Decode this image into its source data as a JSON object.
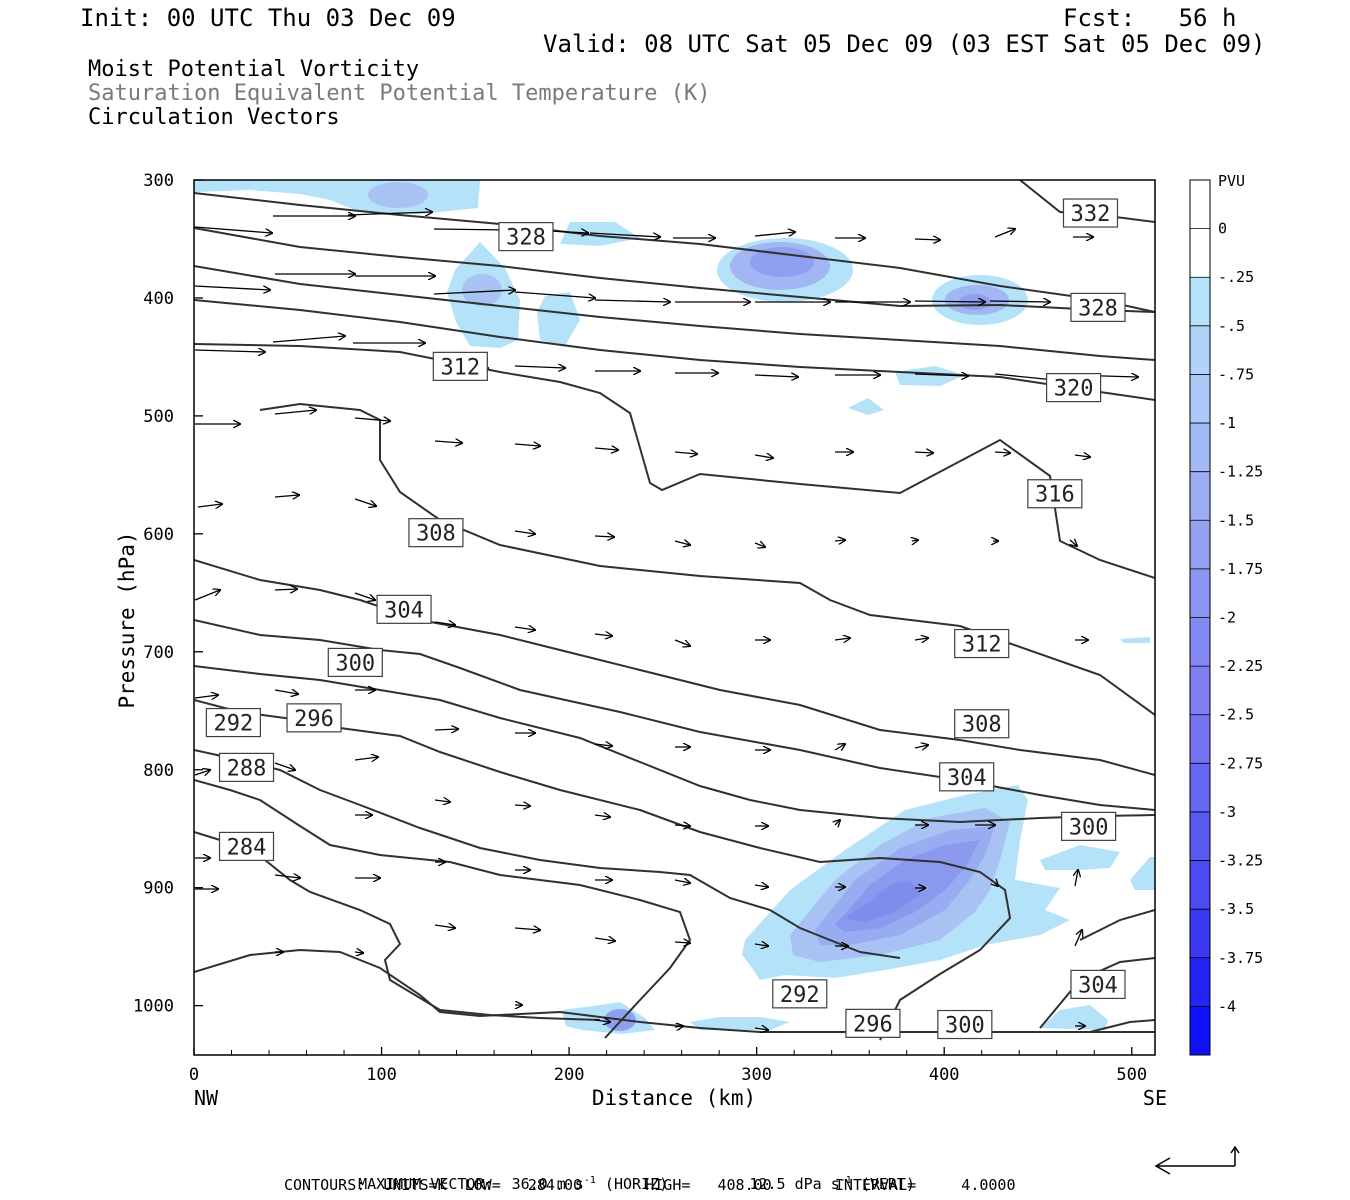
{
  "header": {
    "init": "Init: 00 UTC Thu 03 Dec 09",
    "fcst": "Fcst:   56 h",
    "valid": "Valid: 08 UTC Sat 05 Dec 09 (03 EST Sat 05 Dec 09)"
  },
  "titles": [
    "Moist Potential Vorticity",
    "Saturation Equivalent Potential Temperature (K)",
    "Circulation Vectors"
  ],
  "colors": {
    "contour": "#303030",
    "shade_light": "#b4e2f8",
    "shade_mid": "#8fa6f2",
    "shade_dark": "#7474ea"
  },
  "chart_data": {
    "type": "cross-section",
    "xlabel": "Distance (km)",
    "ylabel": "Pressure (hPa)",
    "x_ticks": [
      0,
      100,
      200,
      300,
      400,
      500
    ],
    "y_ticks": [
      300,
      400,
      500,
      600,
      700,
      800,
      900,
      1000
    ],
    "xlim": [
      0,
      512
    ],
    "ylim": [
      300,
      1040
    ],
    "x_end_labels": {
      "left": "NW",
      "right": "SE"
    },
    "contour_labels": [
      {
        "value": "332",
        "x": 478,
        "p": 328
      },
      {
        "value": "328",
        "x": 177,
        "p": 348
      },
      {
        "value": "328",
        "x": 482,
        "p": 408
      },
      {
        "value": "320",
        "x": 469,
        "p": 476
      },
      {
        "value": "316",
        "x": 459,
        "p": 566
      },
      {
        "value": "312",
        "x": 142,
        "p": 458
      },
      {
        "value": "312",
        "x": 420,
        "p": 693
      },
      {
        "value": "308",
        "x": 129,
        "p": 599
      },
      {
        "value": "308",
        "x": 420,
        "p": 761
      },
      {
        "value": "304",
        "x": 112,
        "p": 664
      },
      {
        "value": "304",
        "x": 412,
        "p": 806
      },
      {
        "value": "304",
        "x": 482,
        "p": 982
      },
      {
        "value": "300",
        "x": 86,
        "p": 709
      },
      {
        "value": "300",
        "x": 477,
        "p": 848
      },
      {
        "value": "300",
        "x": 411,
        "p": 1016
      },
      {
        "value": "296",
        "x": 64,
        "p": 756
      },
      {
        "value": "296",
        "x": 362,
        "p": 1015
      },
      {
        "value": "292",
        "x": 21,
        "p": 760
      },
      {
        "value": "292",
        "x": 323,
        "p": 990
      },
      {
        "value": "288",
        "x": 28,
        "p": 798
      },
      {
        "value": "284",
        "x": 28,
        "p": 865
      }
    ],
    "legend": {
      "unit": "PVU",
      "labels": [
        "0",
        "-.25",
        "-.5",
        "-.75",
        "-1",
        "-1.25",
        "-1.5",
        "-1.75",
        "-2",
        "-2.25",
        "-2.5",
        "-2.75",
        "-3",
        "-3.25",
        "-3.5",
        "-3.75",
        "-4"
      ]
    },
    "max_vector": {
      "text": "MAXIMUM VECTOR:  36.0 m s",
      "horiz": "(HORIZ)",
      "vert_value": "12.5 dPa s",
      "vert": "(VERT)"
    },
    "contours_info": "CONTOURS:  UNITS=K  LOW=   284.00       HIGH=   408.00       INTERVAL=     4.0000"
  }
}
